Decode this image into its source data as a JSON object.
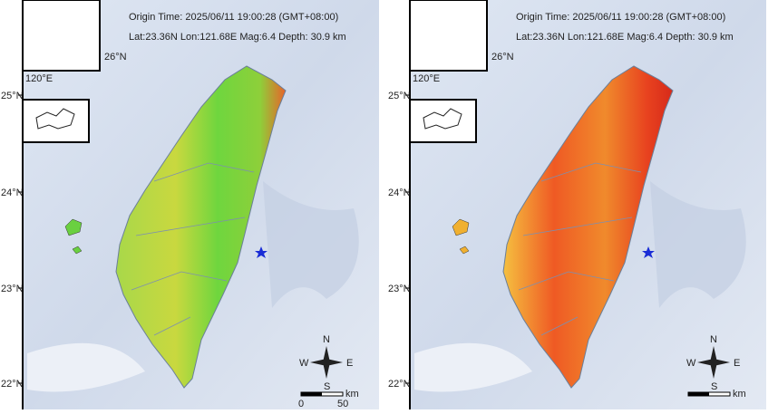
{
  "panels": [
    {
      "origin_time": "Origin Time:  2025/06/11  19:00:28  (GMT+08:00)",
      "event": "Lat:23.36N  Lon:121.68E  Mag:6.4  Depth: 30.9 km",
      "lat_labels": [
        "25°N",
        "24°N",
        "23°N",
        "22°N"
      ],
      "inset_lat": "26°N",
      "inset_lon": "120°E",
      "compass": {
        "n": "N",
        "e": "E",
        "s": "S",
        "w": "W"
      },
      "scale": {
        "start": "0",
        "end": "50",
        "unit": "km"
      }
    },
    {
      "origin_time": "Origin Time:  2025/06/11  19:00:28  (GMT+08:00)",
      "event": "Lat:23.36N  Lon:121.68E  Mag:6.4  Depth: 30.9 km",
      "lat_labels": [
        "25°N",
        "24°N",
        "23°N",
        "22°N"
      ],
      "inset_lat": "26°N",
      "inset_lon": "120°E",
      "compass": {
        "n": "N",
        "e": "E",
        "s": "S",
        "w": "W"
      },
      "scale": {
        "unit": "km"
      }
    }
  ]
}
